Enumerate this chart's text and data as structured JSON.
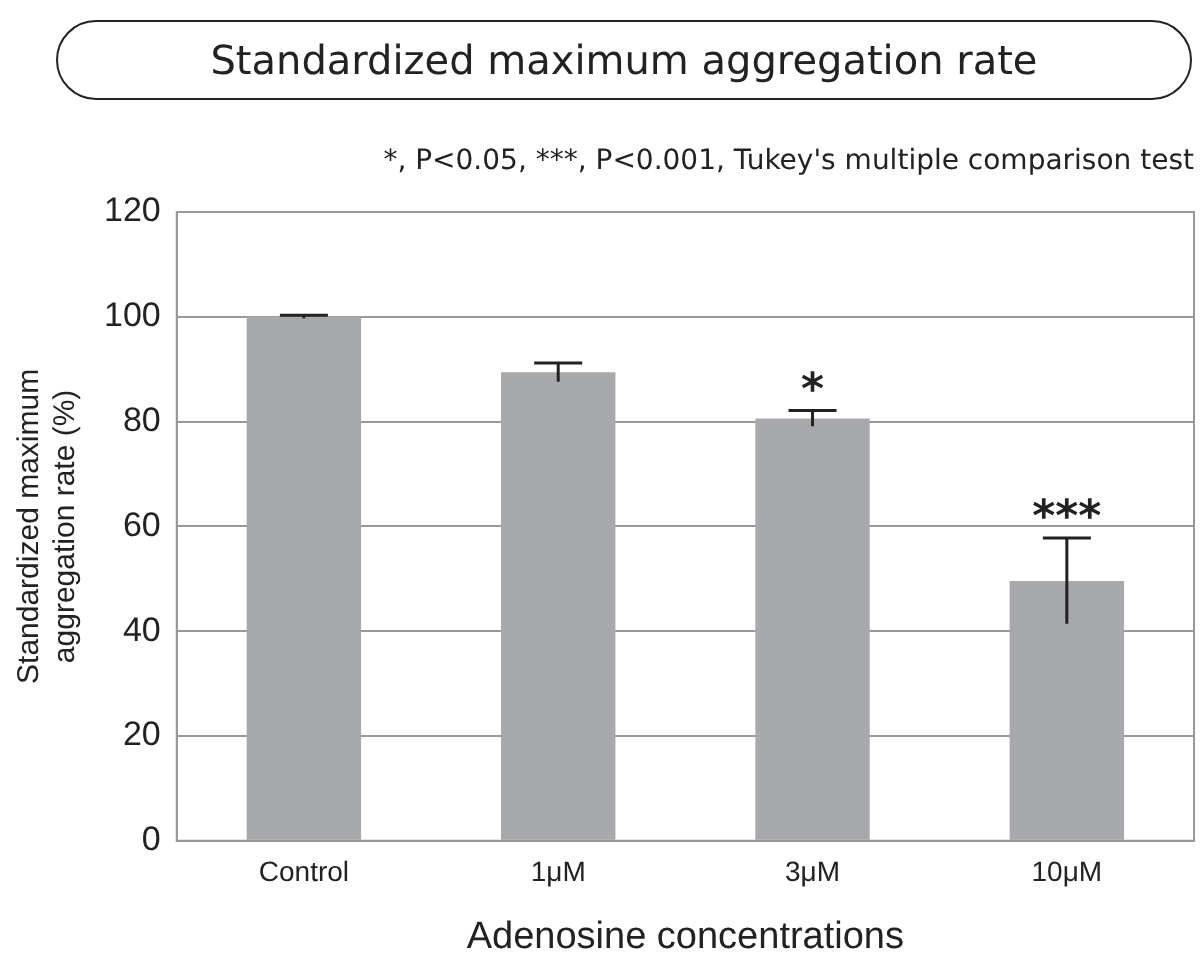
{
  "chart_data": {
    "type": "bar",
    "title": "Standardized maximum aggregation rate",
    "xlabel": "Adenosine concentrations",
    "ylabel": "Standardized maximum aggregation rate (%)",
    "categories": [
      "Control",
      "1μM",
      "3μM",
      "10μM"
    ],
    "values": [
      100,
      89.4,
      80.6,
      49.6
    ],
    "errors": [
      0.3,
      1.8,
      1.5,
      8.2
    ],
    "color": "#a8a9ad",
    "ylim": [
      0,
      120
    ],
    "yticks": [
      0,
      20,
      40,
      60,
      80,
      100,
      120
    ],
    "grid": "y",
    "legend": false,
    "annotations": [
      "*, P<0.05, ***, P<0.001, Tukey's multiple comparison test",
      {
        "text": "*",
        "x": "3μM",
        "y": 82.1
      },
      {
        "text": "***",
        "x": "10μM",
        "y": 57.8
      }
    ]
  }
}
